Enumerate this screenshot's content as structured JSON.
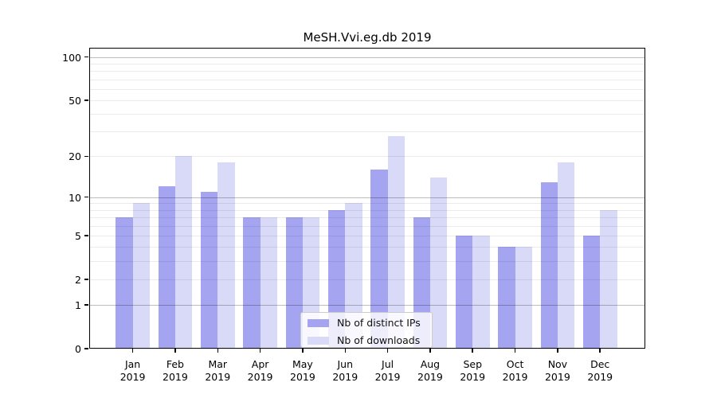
{
  "title": "MeSH.Vvi.eg.db 2019",
  "chart_data": {
    "type": "bar",
    "title": "MeSH.Vvi.eg.db 2019",
    "categories": [
      "Jan",
      "Feb",
      "Mar",
      "Apr",
      "May",
      "Jun",
      "Jul",
      "Aug",
      "Sep",
      "Oct",
      "Nov",
      "Dec"
    ],
    "year_label": "2019",
    "series": [
      {
        "name": "Nb of distinct IPs",
        "color": "#a4a4f0",
        "values": [
          7,
          12,
          11,
          7,
          7,
          8,
          16,
          7,
          5,
          4,
          13,
          5
        ]
      },
      {
        "name": "Nb of downloads",
        "color": "#d9d9f8",
        "values": [
          9,
          20,
          18,
          7,
          7,
          9,
          28,
          14,
          5,
          4,
          18,
          8
        ]
      }
    ],
    "xlabel": "",
    "ylabel": "",
    "yscale": "log1p",
    "ylim": [
      0,
      116
    ],
    "ytick_labels": [
      "100",
      "50",
      "20",
      "10",
      "5",
      "2",
      "1",
      "0"
    ],
    "ytick_values": [
      100,
      50,
      20,
      10,
      5,
      2,
      1,
      0
    ],
    "grid_major": [
      1,
      10,
      100
    ],
    "grid_minor": [
      2,
      3,
      4,
      5,
      6,
      7,
      8,
      9,
      20,
      30,
      40,
      50,
      60,
      70,
      80,
      90
    ],
    "grid": "on",
    "legend_position": "lower-center",
    "legend_entries": [
      "Nb of distinct IPs",
      "Nb of downloads"
    ]
  }
}
